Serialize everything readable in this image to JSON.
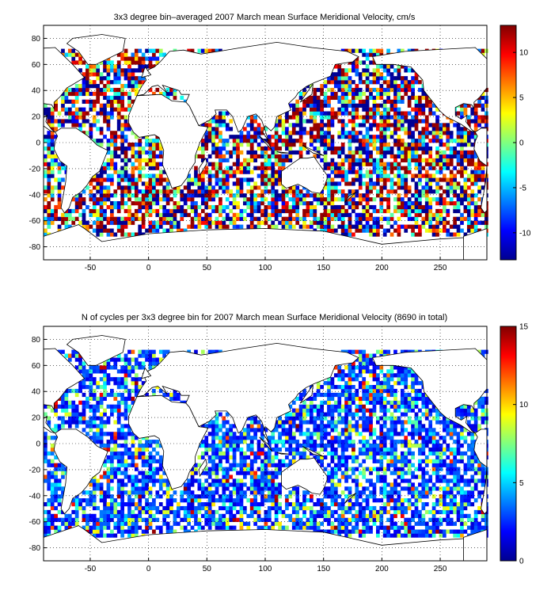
{
  "chart_data": [
    {
      "type": "heatmap",
      "title": "3x3 degree bin–averaged 2007 March mean Surface Meridional Velocity, cm/s",
      "xlabel": "",
      "ylabel": "",
      "xlim": [
        -90,
        290
      ],
      "ylim": [
        -90,
        90
      ],
      "x_ticks": [
        -50,
        0,
        50,
        100,
        150,
        200,
        250
      ],
      "y_ticks": [
        80,
        60,
        40,
        20,
        0,
        -20,
        -40,
        -60,
        -80
      ],
      "grid": true,
      "bin_size_deg": 3,
      "colormap": "jet",
      "colorbar": {
        "min": -13,
        "max": 13,
        "ticks": [
          10,
          5,
          0,
          -5,
          -10
        ],
        "placement": "right"
      },
      "coastline": true
    },
    {
      "type": "heatmap",
      "title": "N of cycles per 3x3 degree bin for 2007 March mean Surface Meridional Velocity (8690 in total)",
      "xlabel": "",
      "ylabel": "",
      "xlim": [
        -90,
        290
      ],
      "ylim": [
        -90,
        90
      ],
      "x_ticks": [
        -50,
        0,
        50,
        100,
        150,
        200,
        250
      ],
      "y_ticks": [
        80,
        60,
        40,
        20,
        0,
        -20,
        -40,
        -60,
        -80
      ],
      "grid": true,
      "bin_size_deg": 3,
      "colormap": "jet",
      "colorbar": {
        "min": 0,
        "max": 15,
        "ticks": [
          15,
          10,
          5,
          0
        ],
        "placement": "right"
      },
      "coastline": true
    }
  ]
}
